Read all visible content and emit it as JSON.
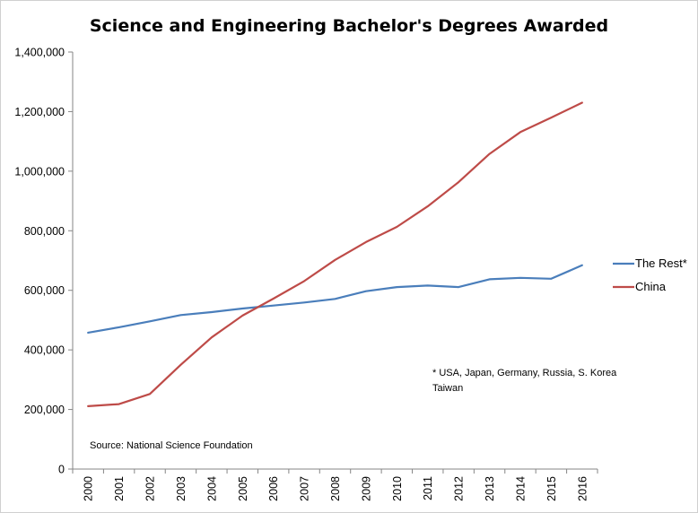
{
  "chart_data": {
    "type": "line",
    "title": "Science and Engineering Bachelor's Degrees Awarded",
    "xlabel": "",
    "ylabel": "",
    "x": [
      "2000",
      "2001",
      "2002",
      "2003",
      "2004",
      "2005",
      "2006",
      "2007",
      "2008",
      "2009",
      "2010",
      "2011",
      "2012",
      "2013",
      "2014",
      "2015",
      "2016"
    ],
    "ylim": [
      0,
      1400000
    ],
    "yticks": [
      0,
      200000,
      400000,
      600000,
      800000,
      1000000,
      1200000,
      1400000
    ],
    "ytick_labels": [
      "0",
      "200,000",
      "400,000",
      "600,000",
      "800,000",
      "1,000,000",
      "1,200,000",
      "1,400,000"
    ],
    "grid": false,
    "legend_position": "right",
    "series": [
      {
        "name": "The Rest*",
        "color": "#4a7ebb",
        "values": [
          458000,
          476000,
          496000,
          517000,
          527000,
          539000,
          549000,
          559000,
          571000,
          597000,
          611000,
          616000,
          611000,
          637000,
          642000,
          639000,
          684000
        ]
      },
      {
        "name": "China",
        "color": "#be4b48",
        "values": [
          211000,
          218000,
          252000,
          350000,
          442000,
          515000,
          572000,
          631000,
          702000,
          762000,
          813000,
          882000,
          963000,
          1058000,
          1131000,
          1180000,
          1230000
        ]
      }
    ],
    "annotations": [
      "* USA, Japan, Germany, Russia, S. Korea",
      "Taiwan",
      "Source: National Science Foundation"
    ]
  }
}
